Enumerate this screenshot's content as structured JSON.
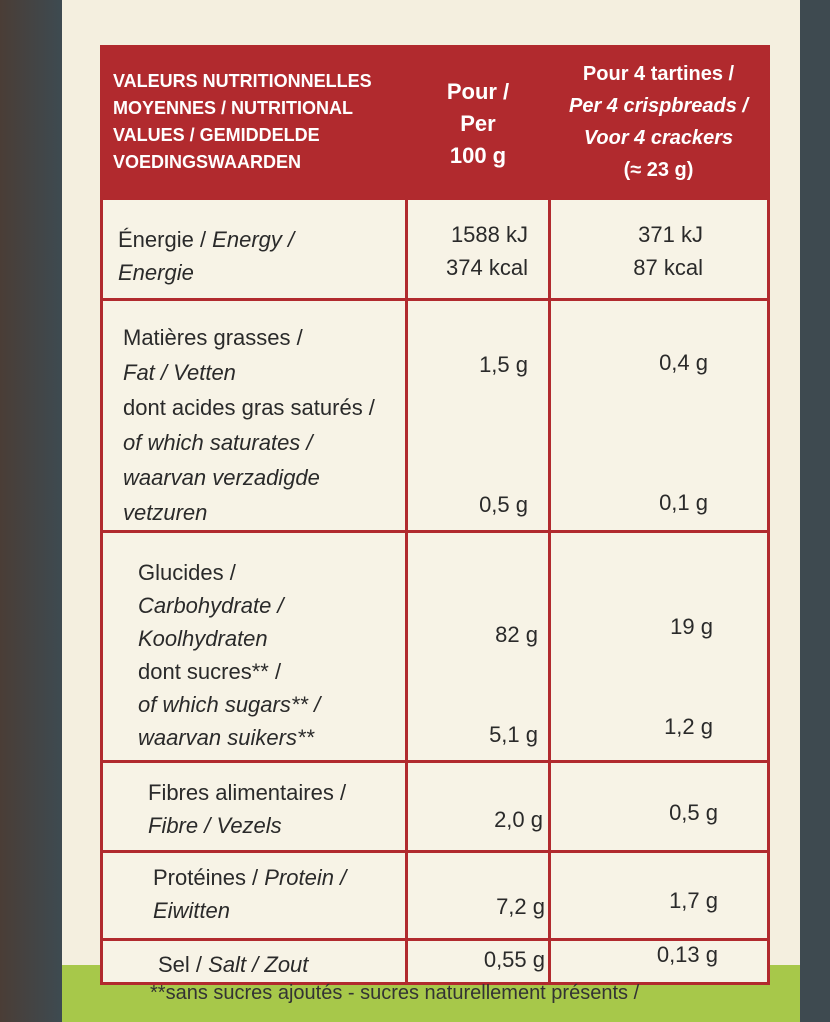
{
  "header": {
    "label": [
      "VALEURS NUTRITIONNELLES",
      "MOYENNES / NUTRITIONAL",
      "VALUES / GEMIDDELDE",
      "VOEDINGSWAARDEN"
    ],
    "per100": [
      "Pour /",
      "Per",
      "100 g"
    ],
    "per4": [
      "Pour 4 tartines /",
      "Per 4 crispbreads /",
      "Voor 4 crackers",
      "(≈ 23 g)"
    ]
  },
  "rows": [
    {
      "label": [
        "Énergie / ",
        "Energy /",
        "Energie"
      ],
      "per100": [
        "1588 kJ",
        "374 kcal"
      ],
      "per4": [
        "371 kJ",
        "87 kcal"
      ]
    },
    {
      "label": [
        "Matières grasses /",
        "Fat / Vetten",
        "dont acides gras saturés /",
        "of which saturates /",
        "waarvan verzadigde",
        "vetzuren"
      ],
      "per100": [
        "1,5 g",
        "0,5 g"
      ],
      "per4": [
        "0,4 g",
        "0,1 g"
      ]
    },
    {
      "label": [
        "Glucides /",
        "Carbohydrate /",
        "Koolhydraten",
        "dont sucres** /",
        "of which sugars** /",
        "waarvan suikers**"
      ],
      "per100": [
        "82 g",
        "5,1 g"
      ],
      "per4": [
        "19 g",
        "1,2 g"
      ]
    },
    {
      "label": [
        "Fibres alimentaires /",
        "Fibre / Vezels"
      ],
      "per100": [
        "2,0 g"
      ],
      "per4": [
        "0,5 g"
      ]
    },
    {
      "label": [
        "Protéines / ",
        "Protein /",
        "Eiwitten"
      ],
      "per100": [
        "7,2 g"
      ],
      "per4": [
        "1,7 g"
      ]
    },
    {
      "label": [
        "Sel / ",
        "Salt / Zout"
      ],
      "per100": [
        "0,55 g"
      ],
      "per4": [
        "0,13 g"
      ]
    }
  ],
  "footnote": "**sans sucres ajoutés - sucres naturellement présents /"
}
